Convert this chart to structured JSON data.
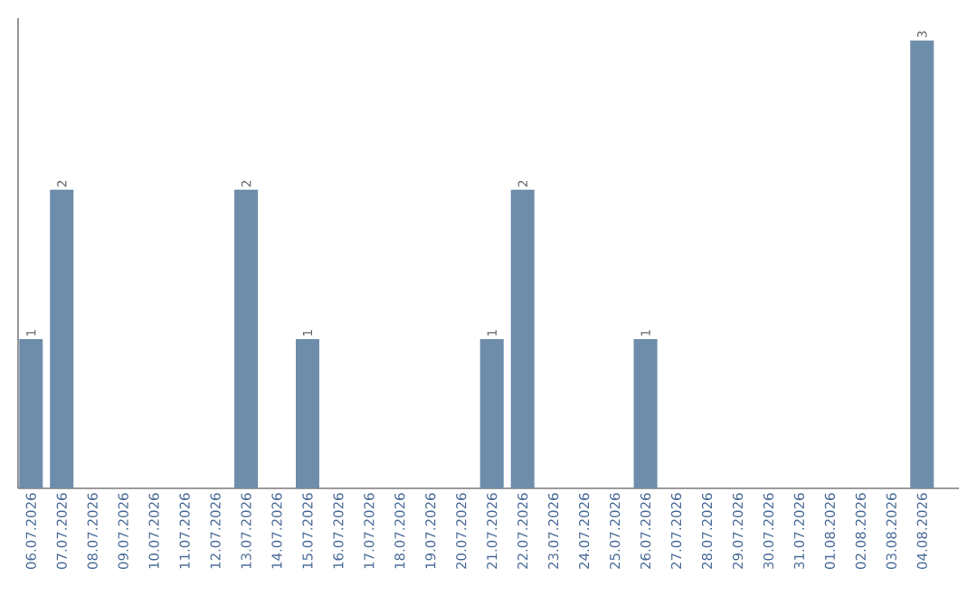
{
  "chart_data": {
    "type": "bar",
    "categories": [
      "06.07.2026",
      "07.07.2026",
      "08.07.2026",
      "09.07.2026",
      "10.07.2026",
      "11.07.2026",
      "12.07.2026",
      "13.07.2026",
      "14.07.2026",
      "15.07.2026",
      "16.07.2026",
      "17.07.2026",
      "18.07.2026",
      "19.07.2026",
      "20.07.2026",
      "21.07.2026",
      "22.07.2026",
      "23.07.2026",
      "24.07.2026",
      "25.07.2026",
      "26.07.2026",
      "27.07.2026",
      "28.07.2026",
      "29.07.2026",
      "30.07.2026",
      "31.07.2026",
      "01.08.2026",
      "02.08.2026",
      "03.08.2026",
      "04.08.2026"
    ],
    "values": [
      1,
      2,
      0,
      0,
      0,
      0,
      0,
      2,
      0,
      1,
      0,
      0,
      0,
      0,
      0,
      1,
      2,
      0,
      0,
      0,
      1,
      0,
      0,
      0,
      0,
      0,
      0,
      0,
      0,
      3
    ],
    "value_labels": [
      "1",
      "2",
      null,
      null,
      null,
      null,
      null,
      "2",
      null,
      "1",
      null,
      null,
      null,
      null,
      null,
      "1",
      "2",
      null,
      null,
      null,
      "1",
      null,
      null,
      null,
      null,
      null,
      null,
      null,
      null,
      "3"
    ],
    "color": "#6d8dab"
  }
}
